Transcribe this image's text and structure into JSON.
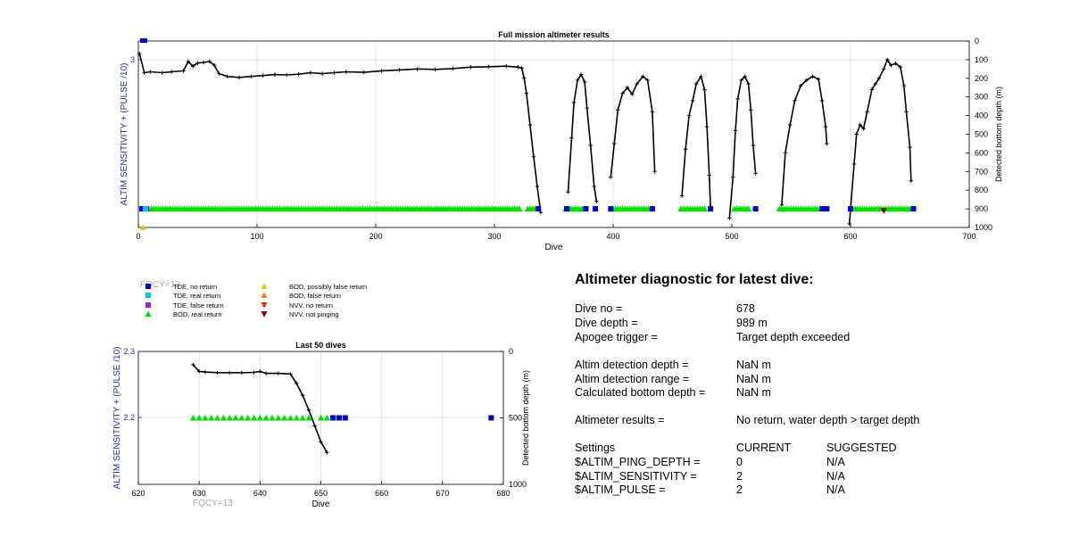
{
  "chart_data": [
    {
      "type": "line",
      "title": "Full mission altimeter results",
      "xlabel": "Dive",
      "ylabel_left": "ALTIM SENSITIVITY + (PULSE /10)",
      "ylabel_right": "Detected bottom depth (m)",
      "xlim": [
        0,
        700
      ],
      "x_ticks": [
        "0",
        "100",
        "200",
        "300",
        "400",
        "500",
        "600",
        "700"
      ],
      "left_ticks": [
        "3"
      ],
      "right_ylim": [
        1000,
        0
      ],
      "right_ticks": [
        "0",
        "100",
        "200",
        "300",
        "400",
        "500",
        "600",
        "700",
        "800",
        "900",
        "1000"
      ],
      "grid": true,
      "series": [
        {
          "name": "Detected bottom depth",
          "segments": [
            [
              [
                1,
                68
              ],
              [
                5,
                170
              ],
              [
                10,
                165
              ],
              [
                20,
                170
              ],
              [
                28,
                165
              ],
              [
                38,
                160
              ],
              [
                42,
                110
              ],
              [
                46,
                135
              ],
              [
                50,
                118
              ],
              [
                55,
                115
              ],
              [
                60,
                110
              ],
              [
                64,
                130
              ],
              [
                68,
                175
              ],
              [
                75,
                190
              ],
              [
                85,
                195
              ],
              [
                95,
                190
              ],
              [
                105,
                185
              ],
              [
                115,
                180
              ],
              [
                125,
                182
              ],
              [
                135,
                178
              ],
              [
                145,
                170
              ],
              [
                155,
                175
              ],
              [
                165,
                170
              ],
              [
                175,
                165
              ],
              [
                190,
                168
              ],
              [
                205,
                160
              ],
              [
                220,
                155
              ],
              [
                235,
                150
              ],
              [
                250,
                152
              ],
              [
                265,
                148
              ],
              [
                280,
                140
              ],
              [
                295,
                138
              ],
              [
                310,
                135
              ],
              [
                320,
                140
              ],
              [
                323,
                145
              ],
              [
                325,
                200
              ],
              [
                327,
                280
              ],
              [
                330,
                450
              ],
              [
                333,
                620
              ],
              [
                336,
                780
              ],
              [
                339,
                920
              ]
            ],
            [
              [
                362,
                810
              ],
              [
                365,
                520
              ],
              [
                367,
                330
              ],
              [
                370,
                210
              ],
              [
                373,
                180
              ],
              [
                376,
                220
              ],
              [
                378,
                360
              ],
              [
                381,
                560
              ],
              [
                384,
                780
              ],
              [
                386,
                860
              ]
            ],
            [
              [
                398,
                730
              ],
              [
                401,
                550
              ],
              [
                404,
                370
              ],
              [
                408,
                280
              ],
              [
                412,
                250
              ],
              [
                416,
                285
              ],
              [
                420,
                230
              ],
              [
                425,
                190
              ],
              [
                429,
                210
              ],
              [
                433,
                380
              ],
              [
                435,
                700
              ]
            ],
            [
              [
                458,
                830
              ],
              [
                461,
                580
              ],
              [
                464,
                400
              ],
              [
                467,
                320
              ],
              [
                470,
                230
              ],
              [
                474,
                190
              ],
              [
                477,
                260
              ],
              [
                479,
                460
              ],
              [
                481,
                720
              ],
              [
                482,
                890
              ]
            ],
            [
              [
                498,
                950
              ],
              [
                501,
                730
              ],
              [
                503,
                480
              ],
              [
                505,
                310
              ],
              [
                508,
                210
              ],
              [
                511,
                190
              ],
              [
                514,
                230
              ],
              [
                516,
                370
              ],
              [
                518,
                560
              ],
              [
                520,
                710
              ]
            ],
            [
              [
                542,
                880
              ],
              [
                545,
                600
              ],
              [
                549,
                450
              ],
              [
                553,
                320
              ],
              [
                558,
                240
              ],
              [
                563,
                210
              ],
              [
                568,
                190
              ],
              [
                573,
                205
              ],
              [
                576,
                320
              ],
              [
                579,
                460
              ],
              [
                580,
                550
              ]
            ],
            [
              [
                599,
                980
              ],
              [
                603,
                660
              ],
              [
                605,
                500
              ],
              [
                608,
                450
              ],
              [
                611,
                470
              ],
              [
                614,
                380
              ],
              [
                618,
                260
              ],
              [
                621,
                230
              ],
              [
                624,
                200
              ],
              [
                628,
                150
              ],
              [
                631,
                100
              ],
              [
                634,
                130
              ],
              [
                638,
                120
              ],
              [
                642,
                140
              ],
              [
                645,
                240
              ],
              [
                647,
                380
              ],
              [
                650,
                570
              ],
              [
                651,
                750
              ]
            ]
          ]
        },
        {
          "name": "BOD, real return",
          "ranges": [
            [
              11,
              321
            ],
            [
              328,
              335
            ],
            [
              360,
              374
            ],
            [
              398,
              432
            ],
            [
              457,
              477
            ],
            [
              502,
              515
            ],
            [
              540,
              573
            ],
            [
              600,
              650
            ]
          ]
        },
        {
          "name": "TDE, no return",
          "x": [
            3,
            5,
            7,
            337,
            361,
            377,
            385,
            398,
            433,
            482,
            520,
            576,
            580,
            600,
            653
          ],
          "y_depth": [
            900,
            900,
            900,
            900,
            900,
            900,
            900,
            900,
            900,
            900,
            900,
            900,
            900,
            900,
            900
          ]
        },
        {
          "name": "TDE, real return",
          "x": [
            6
          ],
          "y_depth": [
            900
          ]
        },
        {
          "name": "BOD, possibly false return",
          "x": [
            4
          ],
          "y_depth": [
            1000
          ]
        },
        {
          "name": "NVV, not pinging",
          "x": [
            628
          ],
          "y_depth": [
            910
          ]
        }
      ],
      "note": "FQCY=13"
    },
    {
      "type": "line",
      "title": "Last 50 dives",
      "xlabel": "Dive",
      "ylabel_left": "ALTIM SENSITIVITY + (PULSE /10)",
      "ylabel_right": "Detected bottom depth (m)",
      "xlim": [
        620,
        680
      ],
      "x_ticks": [
        "620",
        "630",
        "640",
        "650",
        "660",
        "670",
        "680"
      ],
      "left_ticks": [
        "2.3",
        "2.2"
      ],
      "right_ylim": [
        1000,
        0
      ],
      "right_ticks": [
        "0",
        "500",
        "1000"
      ],
      "grid": true,
      "series": [
        {
          "name": "Detected bottom depth",
          "x": [
            629,
            630,
            631,
            633,
            635,
            637,
            639,
            640,
            641,
            643,
            645,
            646,
            647,
            648,
            649,
            650,
            651
          ],
          "y_depth": [
            100,
            150,
            155,
            160,
            160,
            160,
            158,
            150,
            165,
            165,
            170,
            240,
            330,
            440,
            560,
            680,
            760
          ]
        },
        {
          "name": "BOD, real return",
          "x": [
            629,
            630,
            631,
            632,
            633,
            634,
            635,
            636,
            637,
            638,
            639,
            640,
            641,
            642,
            643,
            644,
            645,
            646,
            647,
            648,
            650,
            651
          ],
          "y_depth": [
            500,
            500,
            500,
            500,
            500,
            500,
            500,
            500,
            500,
            500,
            500,
            500,
            500,
            500,
            500,
            500,
            500,
            500,
            500,
            500,
            500,
            500
          ]
        },
        {
          "name": "TDE, no return",
          "x": [
            652,
            653,
            654,
            678
          ],
          "y_depth": [
            500,
            500,
            500,
            500
          ]
        }
      ],
      "note": "FQCY=13"
    }
  ],
  "legend": [
    {
      "label": "TDE, no return",
      "color": "#0000cc",
      "marker": "square"
    },
    {
      "label": "TDE, real return",
      "color": "#00c8e0",
      "marker": "square"
    },
    {
      "label": "TDE, false return",
      "color": "#8a2be2",
      "marker": "square"
    },
    {
      "label": "BOD, real return",
      "color": "#00e000",
      "marker": "triangle-up"
    },
    {
      "label": "BOD, possibly false return",
      "color": "#f0c020",
      "marker": "triangle-up"
    },
    {
      "label": "BOD, false return",
      "color": "#f08020",
      "marker": "triangle-up"
    },
    {
      "label": "NVV, no return",
      "color": "#e03010",
      "marker": "triangle-down"
    },
    {
      "label": "NVV, not pinging",
      "color": "#8b0000",
      "marker": "triangle-down"
    }
  ],
  "colors": {
    "axis": "#000000",
    "left_axis": "#1f2fb0",
    "grid": "#e2e2e2",
    "line": "#000000",
    "fqcy": "#a8a8a8"
  },
  "diagnostic": {
    "title": "Altimeter diagnostic for latest dive:",
    "dive_no_label": "Dive no =",
    "dive_no_value": "678",
    "dive_depth_label": "Dive depth =",
    "dive_depth_value": "989 m",
    "apogee_label": "Apogee trigger =",
    "apogee_value": "Target depth exceeded",
    "detection_depth_label": "Altim detection depth =",
    "detection_depth_value": "NaN m",
    "detection_range_label": "Altim detection range =",
    "detection_range_value": "NaN m",
    "calc_bottom_label": "Calculated bottom depth =",
    "calc_bottom_value": "NaN m",
    "results_label": "Altimeter results =",
    "results_value": "No return, water depth > target depth",
    "settings_label": "Settings",
    "current_label": "CURRENT",
    "suggested_label": "SUGGESTED",
    "settings": [
      {
        "name": "$ALTIM_PING_DEPTH =",
        "current": "0",
        "suggested": "N/A"
      },
      {
        "name": "$ALTIM_SENSITIVITY =",
        "current": "2",
        "suggested": "N/A"
      },
      {
        "name": "$ALTIM_PULSE =",
        "current": "2",
        "suggested": "N/A"
      }
    ]
  }
}
